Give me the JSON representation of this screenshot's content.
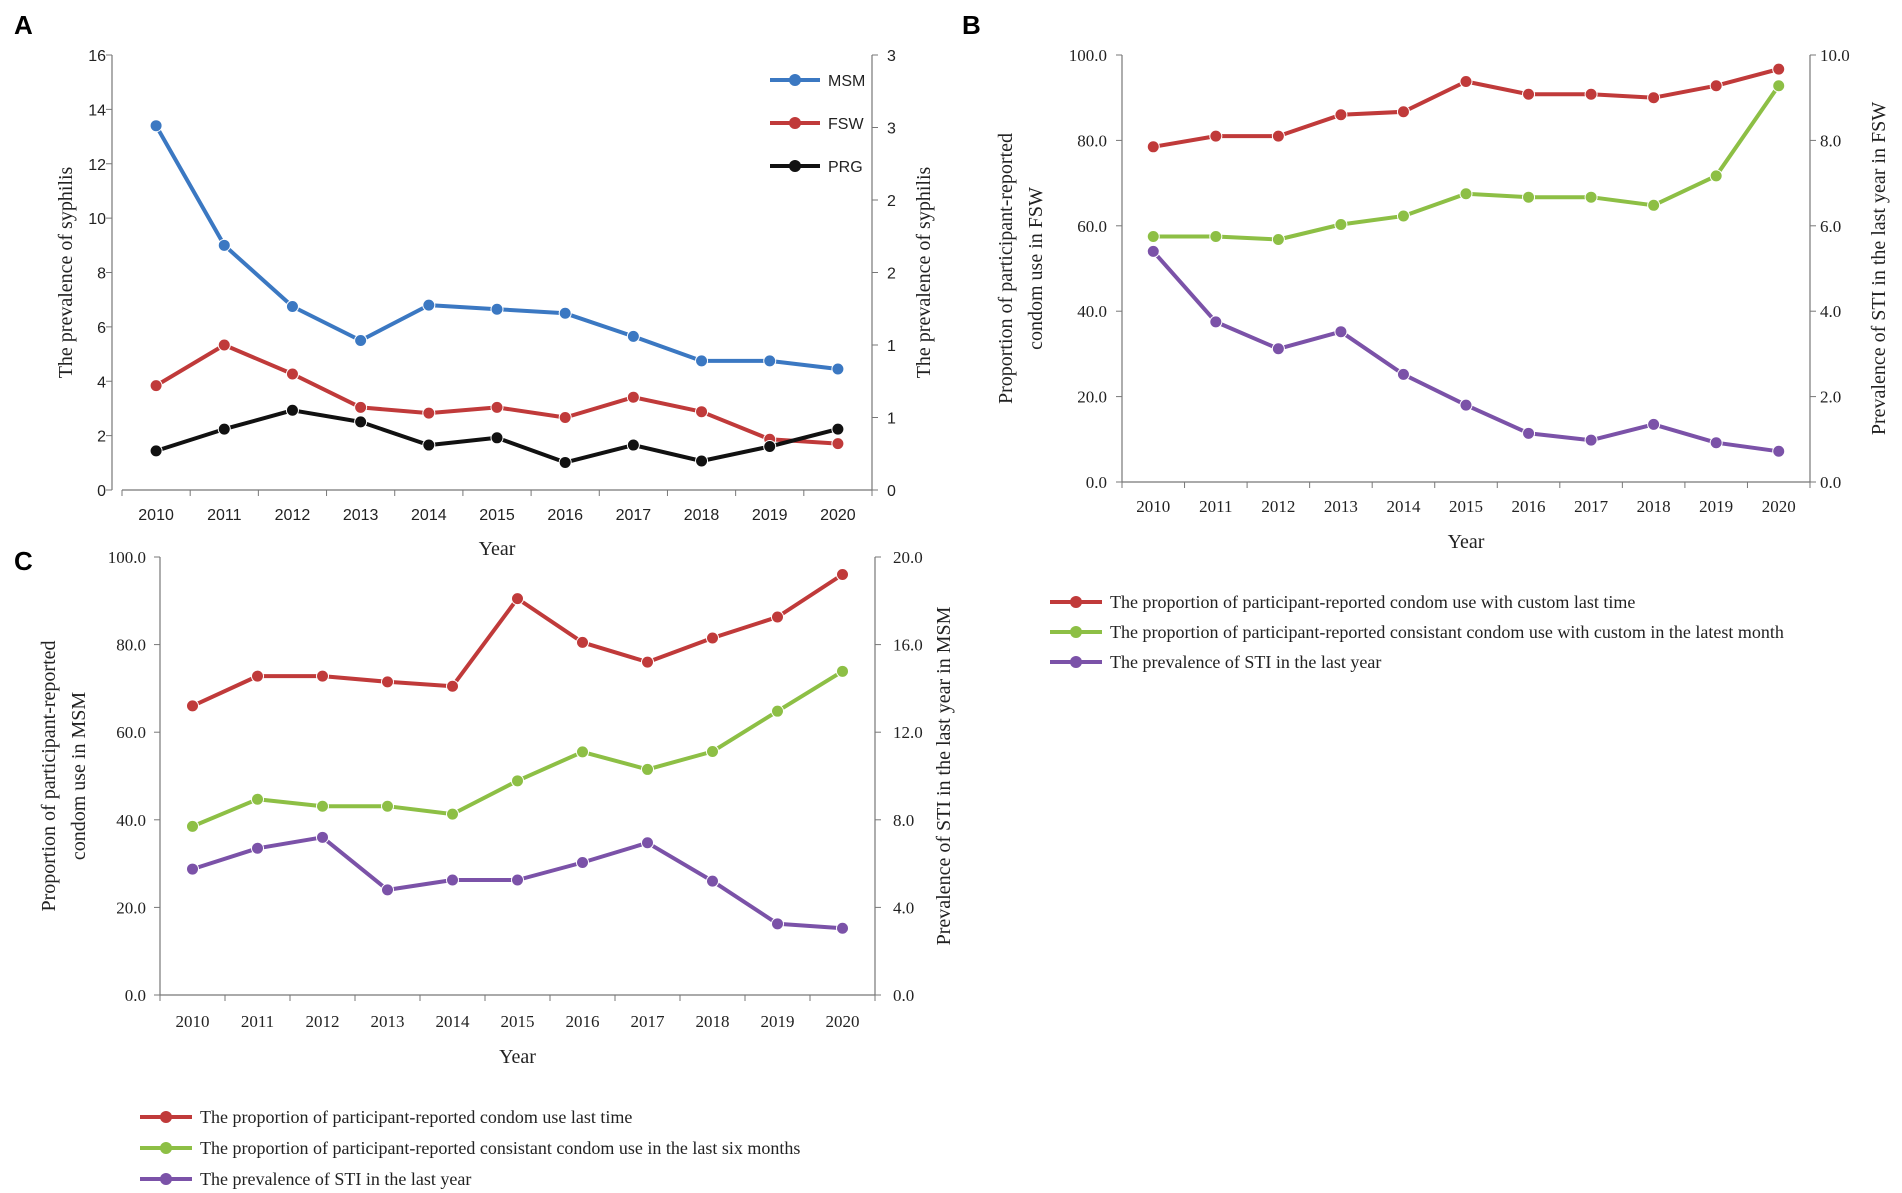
{
  "chart_data": [
    {
      "panel": "A",
      "type": "line",
      "categories": [
        "2010",
        "2011",
        "2012",
        "2013",
        "2014",
        "2015",
        "2016",
        "2017",
        "2018",
        "2019",
        "2020"
      ],
      "ylabel": "The prevalence of syphilis",
      "y2label": "The prevalence of syphilis",
      "xlabel": "Year",
      "ylim": [
        0,
        16
      ],
      "y_ticks": [
        "0",
        "2",
        "4",
        "6",
        "8",
        "10",
        "12",
        "14",
        "16"
      ],
      "y2lim": [
        0,
        3
      ],
      "y2_ticks": [
        "0",
        "1",
        "1",
        "2",
        "2",
        "3",
        "3"
      ],
      "legend_position": "top-right",
      "series": [
        {
          "name": "MSM",
          "axis": "left",
          "color": "#3b78c2",
          "values": [
            13.4,
            9.0,
            6.75,
            5.5,
            6.8,
            6.65,
            6.5,
            5.65,
            4.75,
            4.75,
            4.45
          ]
        },
        {
          "name": "FSW",
          "axis": "right",
          "color": "#c03a3a",
          "values": [
            0.72,
            1.0,
            0.8,
            0.57,
            0.53,
            0.57,
            0.5,
            0.64,
            0.54,
            0.35,
            0.32
          ]
        },
        {
          "name": "PRG",
          "axis": "right",
          "color": "#111111",
          "values": [
            0.27,
            0.42,
            0.55,
            0.47,
            0.31,
            0.36,
            0.19,
            0.31,
            0.2,
            0.3,
            0.42
          ]
        }
      ]
    },
    {
      "panel": "B",
      "type": "line",
      "categories": [
        "2010",
        "2011",
        "2012",
        "2013",
        "2014",
        "2015",
        "2016",
        "2017",
        "2018",
        "2019",
        "2020"
      ],
      "ylabel": "Proportion of participant-reported condom use  in FSW",
      "ylabel_lines": [
        "Proportion of participant-reported",
        "condom use  in FSW"
      ],
      "y2label": "Prevalence of STI in the last year in FSW",
      "xlabel": "Year",
      "ylim": [
        0,
        100
      ],
      "y_ticks": [
        "0.0",
        "20.0",
        "40.0",
        "60.0",
        "80.0",
        "100.0"
      ],
      "y2lim": [
        0,
        10
      ],
      "y2_ticks": [
        "0.0",
        "2.0",
        "4.0",
        "6.0",
        "8.0",
        "10.0"
      ],
      "legend_position": "bottom",
      "series": [
        {
          "name": "The proportion of participant-reported condom use with custom last time",
          "axis": "left",
          "color": "#c03a3a",
          "values": [
            78.5,
            81,
            81,
            86,
            86.7,
            93.8,
            90.8,
            90.8,
            90,
            92.8,
            96.7
          ]
        },
        {
          "name": "The proportion of participant-reported consistant condom use with custom in the latest month",
          "axis": "left",
          "color": "#8dbf45",
          "values": [
            57.5,
            57.5,
            56.8,
            60.3,
            62.3,
            67.5,
            66.7,
            66.7,
            64.8,
            71.7,
            92.8
          ]
        },
        {
          "name": "The prevalence of STI in the last year",
          "axis": "right",
          "color": "#7b52a8",
          "values": [
            5.4,
            3.75,
            3.12,
            3.52,
            2.52,
            1.8,
            1.14,
            0.98,
            1.35,
            0.92,
            0.72
          ]
        }
      ]
    },
    {
      "panel": "C",
      "type": "line",
      "categories": [
        "2010",
        "2011",
        "2012",
        "2013",
        "2014",
        "2015",
        "2016",
        "2017",
        "2018",
        "2019",
        "2020"
      ],
      "ylabel": "Proportion of participant-reported condom use in MSM",
      "ylabel_lines": [
        "Proportion of participant-reported",
        "condom use in MSM"
      ],
      "y2label": "Prevalence of STI in the last year in MSM",
      "xlabel": "Year",
      "ylim": [
        0,
        100
      ],
      "y_ticks": [
        "0.0",
        "20.0",
        "40.0",
        "60.0",
        "80.0",
        "100.0"
      ],
      "y2lim": [
        0,
        20
      ],
      "y2_ticks": [
        "0.0",
        "4.0",
        "8.0",
        "12.0",
        "16.0",
        "20.0"
      ],
      "legend_position": "bottom",
      "series": [
        {
          "name": "The proportion of participant-reported condom use last time",
          "axis": "left",
          "color": "#c03a3a",
          "values": [
            66,
            72.8,
            72.8,
            71.5,
            70.5,
            90.5,
            80.5,
            76,
            81.5,
            86.3,
            96
          ]
        },
        {
          "name": "The proportion of participant-reported consistant condom use in the last six months",
          "axis": "left",
          "color": "#8dbf45",
          "values": [
            38.5,
            44.7,
            43.1,
            43.1,
            41.3,
            48.9,
            55.5,
            51.5,
            55.6,
            64.8,
            73.9
          ]
        },
        {
          "name": "The prevalence of STI in the last year",
          "axis": "right",
          "color": "#7b52a8",
          "values": [
            5.75,
            6.7,
            7.2,
            4.8,
            5.25,
            5.25,
            6.05,
            6.95,
            5.2,
            3.25,
            3.05
          ]
        }
      ]
    }
  ],
  "panel_labels": {
    "a": "A",
    "b": "B",
    "c": "C"
  }
}
